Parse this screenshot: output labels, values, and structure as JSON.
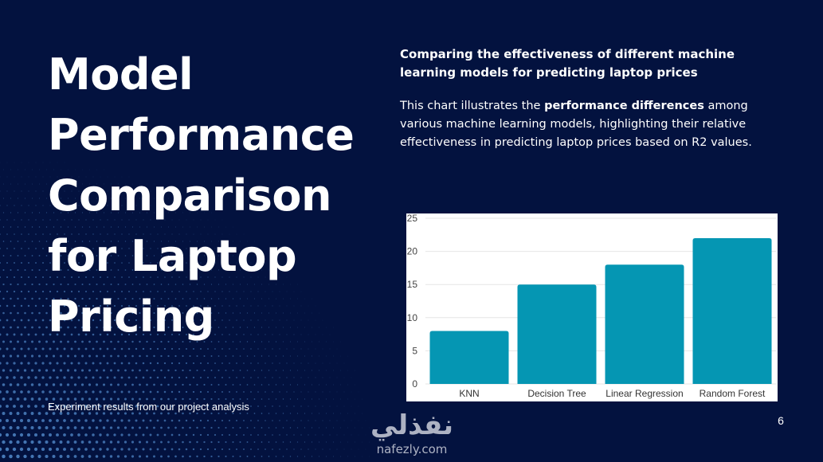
{
  "slide": {
    "title": "Model Performance Comparison for Laptop Pricing",
    "footer_note": "Experiment results from our project analysis",
    "subtitle": "Comparing the effectiveness of different machine learning models for predicting laptop prices",
    "description": {
      "before": "This chart illustrates the ",
      "bold": "performance differences",
      "after": " among various machine learning models, highlighting their relative effectiveness in predicting laptop prices based on R2 values."
    },
    "page_number": "6",
    "watermark": {
      "arabic": "نفذلي",
      "latin": "nafezly.com"
    }
  },
  "colors": {
    "background": "#03123f",
    "bar": "#0596b3",
    "halftone_dots": "#4f86c6"
  },
  "chart_data": {
    "type": "bar",
    "categories": [
      "KNN",
      "Decision Tree",
      "Linear Regression",
      "Random Forest"
    ],
    "values": [
      8,
      15,
      18,
      22
    ],
    "yticks": [
      0,
      5,
      10,
      15,
      20,
      25
    ],
    "ylim": [
      0,
      25
    ],
    "grid": true,
    "legend": "none"
  }
}
